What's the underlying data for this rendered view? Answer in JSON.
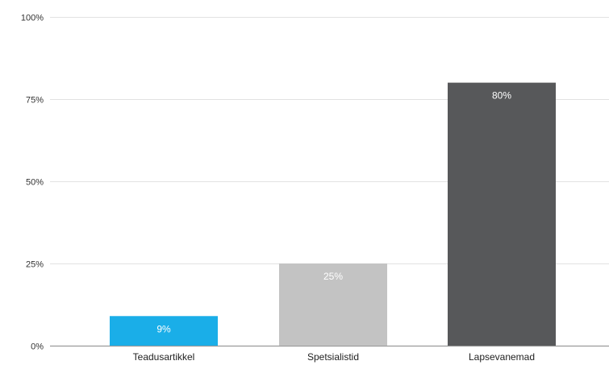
{
  "chart_data": {
    "type": "bar",
    "categories": [
      "Teadusartikkel",
      "Spetsialistid",
      "Lapsevanemad"
    ],
    "values": [
      9,
      25,
      80
    ],
    "data_labels": [
      "9%",
      "25%",
      "80%"
    ],
    "colors": [
      "#1aaee8",
      "#c3c3c3",
      "#57585a"
    ],
    "ylim": [
      0,
      100
    ],
    "yticks": [
      0,
      25,
      50,
      75,
      100
    ],
    "ytick_labels": [
      "0%",
      "25%",
      "50%",
      "75%",
      "100%"
    ],
    "grid": true,
    "legend": "none"
  }
}
